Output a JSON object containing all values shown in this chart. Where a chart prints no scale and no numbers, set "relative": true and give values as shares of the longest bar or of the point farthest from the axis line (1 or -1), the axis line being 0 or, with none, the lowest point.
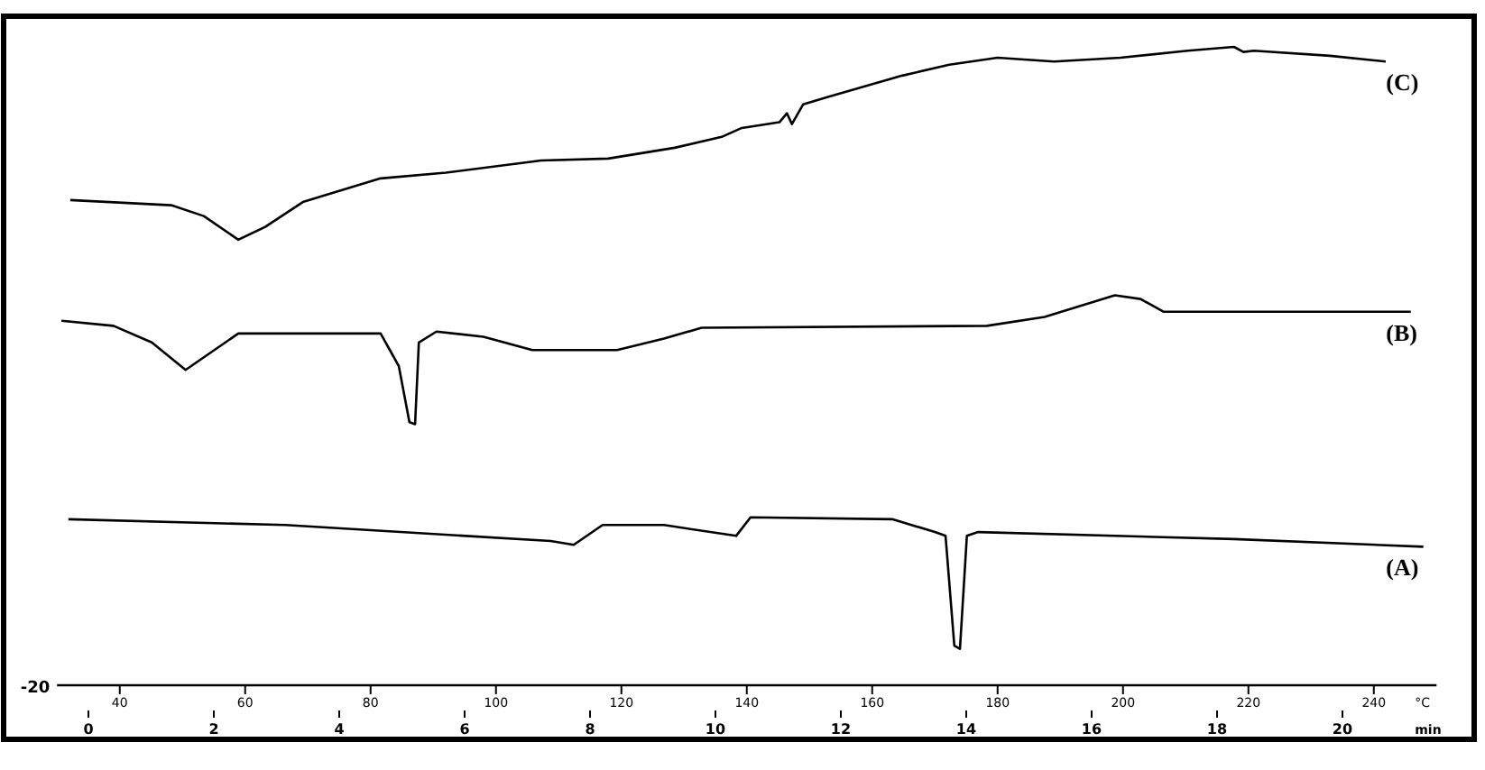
{
  "chart_data": {
    "type": "line",
    "relative": true,
    "xlabel": "min",
    "x2label": "°C",
    "xlim": [
      -0.5,
      21.5
    ],
    "xticks": [
      0,
      2,
      4,
      6,
      8,
      10,
      12,
      14,
      16,
      18,
      20
    ],
    "x2lim": [
      30,
      250
    ],
    "x2ticks": [
      40,
      60,
      80,
      100,
      120,
      140,
      160,
      180,
      200,
      220,
      240
    ],
    "annotations": [
      "-20"
    ],
    "series": [
      {
        "name": "(C)",
        "color": "#000000",
        "x": [
          -0.29,
          1.32,
          1.84,
          2.39,
          2.82,
          3.42,
          4.66,
          5.7,
          7.22,
          8.29,
          9.35,
          10.1,
          10.42,
          11.02,
          11.14,
          11.22,
          11.4,
          11.77,
          12.98,
          13.73,
          14.5,
          15.4,
          16.46,
          17.53,
          18.27,
          18.42,
          18.59,
          19.8,
          20.69
        ],
        "values": [
          0.76,
          0.752,
          0.735,
          0.698,
          0.718,
          0.757,
          0.794,
          0.803,
          0.822,
          0.825,
          0.842,
          0.859,
          0.873,
          0.882,
          0.896,
          0.879,
          0.91,
          0.921,
          0.955,
          0.972,
          0.983,
          0.977,
          0.983,
          0.994,
          1.0,
          0.992,
          0.994,
          0.986,
          0.977
        ]
      },
      {
        "name": "(B)",
        "color": "#000000",
        "x": [
          -0.43,
          0.4,
          1.01,
          1.55,
          2.39,
          4.66,
          4.95,
          5.12,
          5.21,
          5.27,
          5.55,
          6.3,
          7.08,
          8.43,
          9.18,
          9.78,
          14.33,
          15.25,
          16.37,
          16.78,
          17.15,
          21.09
        ],
        "values": [
          0.571,
          0.563,
          0.537,
          0.494,
          0.551,
          0.551,
          0.5,
          0.412,
          0.409,
          0.537,
          0.554,
          0.546,
          0.525,
          0.525,
          0.543,
          0.56,
          0.563,
          0.577,
          0.611,
          0.605,
          0.585,
          0.585
        ]
      },
      {
        "name": "(A)",
        "color": "#000000",
        "x": [
          -0.32,
          3.14,
          7.37,
          7.74,
          8.2,
          9.18,
          10.33,
          10.56,
          12.83,
          13.5,
          13.67,
          13.81,
          13.9,
          14.01,
          14.19,
          18.27,
          21.29
        ],
        "values": [
          0.26,
          0.251,
          0.226,
          0.22,
          0.251,
          0.251,
          0.234,
          0.263,
          0.26,
          0.24,
          0.234,
          0.062,
          0.057,
          0.234,
          0.24,
          0.229,
          0.217
        ]
      }
    ]
  }
}
